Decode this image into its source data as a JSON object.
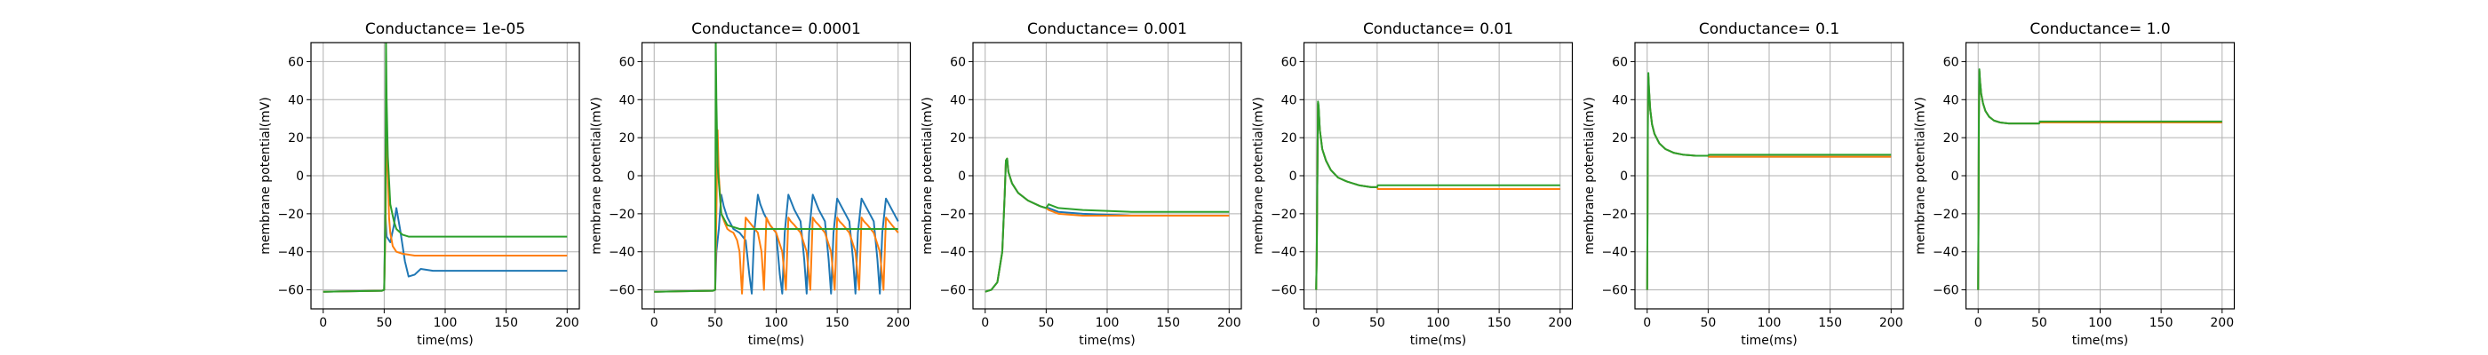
{
  "chart_data": [
    {
      "type": "line",
      "title": "Conductance= 1e-05",
      "xlabel": "time(ms)",
      "ylabel": "membrane potential(mV)",
      "xlim": [
        -10,
        210
      ],
      "ylim": [
        -70,
        70
      ],
      "xticks": [
        0,
        50,
        100,
        150,
        200
      ],
      "yticks": [
        -60,
        -40,
        -20,
        0,
        20,
        40,
        60
      ],
      "grid": true,
      "series": [
        {
          "color": "#1f77b4",
          "x": [
            0,
            48,
            50,
            51,
            52,
            55,
            58,
            60,
            63,
            67,
            70,
            75,
            80,
            90,
            100,
            120,
            150,
            200
          ],
          "y": [
            -61,
            -60.5,
            -60,
            -20,
            -32,
            -35,
            -26,
            -17,
            -28,
            -45,
            -53,
            -52,
            -49,
            -50,
            -50,
            -50,
            -50,
            -50
          ]
        },
        {
          "color": "#ff7f0e",
          "x": [
            0,
            48,
            50,
            51,
            52,
            53,
            54,
            55,
            57,
            60,
            65,
            75,
            100,
            200
          ],
          "y": [
            -61,
            -60.5,
            -60,
            -30,
            24,
            5,
            -22,
            -30,
            -37,
            -40,
            -41,
            -42,
            -42,
            -42
          ]
        },
        {
          "color": "#2ca02c",
          "x": [
            0,
            48,
            50,
            51,
            51.5,
            52,
            53,
            55,
            58,
            60,
            65,
            70,
            80,
            100,
            200
          ],
          "y": [
            -61,
            -60.5,
            -60,
            -20,
            70,
            40,
            10,
            -15,
            -24,
            -28,
            -31,
            -32,
            -32,
            -32,
            -32
          ]
        }
      ]
    },
    {
      "type": "line",
      "title": "Conductance= 0.0001",
      "xlabel": "time(ms)",
      "ylabel": "membrane potential(mV)",
      "xlim": [
        -10,
        210
      ],
      "ylim": [
        -70,
        70
      ],
      "xticks": [
        0,
        50,
        100,
        150,
        200
      ],
      "yticks": [
        -60,
        -40,
        -20,
        0,
        20,
        40,
        60
      ],
      "grid": true,
      "series": [
        {
          "color": "#1f77b4",
          "x": [
            0,
            48,
            50,
            51,
            53,
            55,
            57,
            60,
            65,
            70,
            75,
            78,
            80,
            82,
            85,
            87,
            90,
            95,
            100,
            103,
            105,
            107,
            110,
            115,
            120,
            123,
            125,
            127,
            130,
            135,
            140,
            143,
            145,
            147,
            150,
            155,
            160,
            163,
            165,
            167,
            170,
            175,
            180,
            183,
            185,
            187,
            190,
            195,
            200
          ],
          "y": [
            -61,
            -60.5,
            -60,
            -40,
            -28,
            -10,
            -16,
            -22,
            -28,
            -30,
            -34,
            -52,
            -62,
            -30,
            -10,
            -15,
            -20,
            -26,
            -30,
            -52,
            -62,
            -30,
            -10,
            -18,
            -24,
            -44,
            -62,
            -30,
            -10,
            -18,
            -24,
            -44,
            -62,
            -30,
            -12,
            -18,
            -24,
            -44,
            -62,
            -30,
            -12,
            -18,
            -24,
            -44,
            -62,
            -30,
            -12,
            -18,
            -24
          ]
        },
        {
          "color": "#ff7f0e",
          "x": [
            0,
            48,
            50,
            51,
            52,
            53,
            55,
            58,
            60,
            62,
            65,
            68,
            70,
            72,
            75,
            80,
            85,
            88,
            90,
            92,
            95,
            100,
            105,
            108,
            110,
            112,
            115,
            120,
            125,
            128,
            130,
            132,
            135,
            140,
            145,
            148,
            150,
            152,
            155,
            160,
            165,
            168,
            170,
            172,
            175,
            180,
            185,
            188,
            190,
            195,
            200
          ],
          "y": [
            -61,
            -60.5,
            -60,
            -20,
            24,
            0,
            -20,
            -25,
            -28,
            -29,
            -30,
            -34,
            -40,
            -62,
            -22,
            -26,
            -30,
            -40,
            -60,
            -22,
            -26,
            -30,
            -40,
            -60,
            -22,
            -24,
            -26,
            -30,
            -40,
            -60,
            -22,
            -24,
            -26,
            -30,
            -40,
            -60,
            -22,
            -24,
            -26,
            -30,
            -40,
            -60,
            -22,
            -24,
            -26,
            -30,
            -40,
            -60,
            -22,
            -26,
            -30
          ]
        },
        {
          "color": "#2ca02c",
          "x": [
            0,
            48,
            50,
            50.5,
            51,
            52,
            55,
            60,
            70,
            100,
            200
          ],
          "y": [
            -61,
            -60.5,
            -60,
            70,
            40,
            5,
            -20,
            -26,
            -28,
            -28,
            -28
          ]
        }
      ]
    },
    {
      "type": "line",
      "title": "Conductance= 0.001",
      "xlabel": "time(ms)",
      "ylabel": "membrane potential(mV)",
      "xlim": [
        -10,
        210
      ],
      "ylim": [
        -70,
        70
      ],
      "xticks": [
        0,
        50,
        100,
        150,
        200
      ],
      "yticks": [
        -60,
        -40,
        -20,
        0,
        20,
        40,
        60
      ],
      "grid": true,
      "series": [
        {
          "color": "#1f77b4",
          "x": [
            0,
            5,
            10,
            14,
            16,
            17,
            18,
            19,
            22,
            27,
            35,
            45,
            50,
            52,
            60,
            80,
            120,
            200
          ],
          "y": [
            -61,
            -60,
            -56,
            -40,
            -10,
            8,
            9,
            2,
            -4,
            -9,
            -13,
            -16,
            -17,
            -17,
            -19,
            -20,
            -21,
            -21
          ]
        },
        {
          "color": "#ff7f0e",
          "x": [
            0,
            5,
            10,
            14,
            16,
            17,
            18,
            19,
            22,
            27,
            35,
            45,
            50,
            52,
            60,
            80,
            120,
            200
          ],
          "y": [
            -61,
            -60,
            -56,
            -40,
            -10,
            8,
            9,
            2,
            -4,
            -9,
            -13,
            -16,
            -17,
            -18,
            -20,
            -21,
            -21,
            -21
          ]
        },
        {
          "color": "#2ca02c",
          "x": [
            0,
            5,
            10,
            14,
            16,
            17,
            18,
            19,
            22,
            27,
            35,
            45,
            50,
            52,
            60,
            80,
            120,
            200
          ],
          "y": [
            -61,
            -60,
            -56,
            -40,
            -10,
            8,
            9,
            2,
            -4,
            -9,
            -13,
            -16,
            -17,
            -15,
            -17,
            -18,
            -19,
            -19
          ]
        }
      ]
    },
    {
      "type": "line",
      "title": "Conductance= 0.01",
      "xlabel": "time(ms)",
      "ylabel": "membrane potential(mV)",
      "xlim": [
        -10,
        210
      ],
      "ylim": [
        -70,
        70
      ],
      "xticks": [
        0,
        50,
        100,
        150,
        200
      ],
      "yticks": [
        -60,
        -40,
        -20,
        0,
        20,
        40,
        60
      ],
      "grid": true,
      "series": [
        {
          "color": "#1f77b4",
          "x": [
            0,
            0.5,
            1,
            1.5,
            2,
            3,
            5,
            8,
            12,
            18,
            25,
            35,
            45,
            50,
            50.5,
            100,
            200
          ],
          "y": [
            -60,
            -40,
            0,
            38,
            36,
            24,
            14,
            8,
            3,
            -1,
            -3,
            -5,
            -6,
            -6,
            -7,
            -7,
            -7
          ]
        },
        {
          "color": "#ff7f0e",
          "x": [
            0,
            0.5,
            1,
            1.5,
            2,
            3,
            5,
            8,
            12,
            18,
            25,
            35,
            45,
            50,
            50.5,
            100,
            200
          ],
          "y": [
            -60,
            -40,
            0,
            38,
            36,
            24,
            14,
            8,
            3,
            -1,
            -3,
            -5,
            -6,
            -6,
            -7,
            -7,
            -7
          ]
        },
        {
          "color": "#2ca02c",
          "x": [
            0,
            0.5,
            1,
            1.5,
            2,
            3,
            5,
            8,
            12,
            18,
            25,
            35,
            45,
            50,
            50.5,
            100,
            200
          ],
          "y": [
            -60,
            -40,
            0,
            39,
            37,
            24,
            14,
            8,
            3,
            -1,
            -3,
            -5,
            -6,
            -6,
            -5,
            -5,
            -5
          ]
        }
      ]
    },
    {
      "type": "line",
      "title": "Conductance= 0.1",
      "xlabel": "time(ms)",
      "ylabel": "membrane potential(mV)",
      "xlim": [
        -10,
        210
      ],
      "ylim": [
        -70,
        70
      ],
      "xticks": [
        0,
        50,
        100,
        150,
        200
      ],
      "yticks": [
        -60,
        -40,
        -20,
        0,
        20,
        40,
        60
      ],
      "grid": true,
      "series": [
        {
          "color": "#1f77b4",
          "x": [
            0,
            0.3,
            0.6,
            1,
            1.5,
            2.5,
            4,
            6,
            10,
            15,
            22,
            30,
            40,
            50,
            50.5,
            100,
            200
          ],
          "y": [
            -60,
            -20,
            30,
            52,
            45,
            35,
            27,
            22,
            17,
            14,
            12,
            11,
            10.5,
            10.5,
            10,
            10,
            10
          ]
        },
        {
          "color": "#ff7f0e",
          "x": [
            0,
            0.3,
            0.6,
            1,
            1.5,
            2.5,
            4,
            6,
            10,
            15,
            22,
            30,
            40,
            50,
            50.5,
            100,
            200
          ],
          "y": [
            -60,
            -20,
            30,
            52,
            45,
            35,
            27,
            22,
            17,
            14,
            12,
            11,
            10.5,
            10.5,
            10,
            10,
            10
          ]
        },
        {
          "color": "#2ca02c",
          "x": [
            0,
            0.3,
            0.6,
            1,
            1.5,
            2.5,
            4,
            6,
            10,
            15,
            22,
            30,
            40,
            50,
            50.5,
            100,
            200
          ],
          "y": [
            -60,
            -20,
            30,
            54,
            46,
            35,
            27,
            22,
            17,
            14,
            12,
            11,
            10.5,
            10.5,
            11,
            11,
            11
          ]
        }
      ]
    },
    {
      "type": "line",
      "title": "Conductance= 1.0",
      "xlabel": "time(ms)",
      "ylabel": "membrane potential(mV)",
      "xlim": [
        -10,
        210
      ],
      "ylim": [
        -70,
        70
      ],
      "xticks": [
        0,
        50,
        100,
        150,
        200
      ],
      "yticks": [
        -60,
        -40,
        -20,
        0,
        20,
        40,
        60
      ],
      "grid": true,
      "series": [
        {
          "color": "#1f77b4",
          "x": [
            0,
            0.3,
            0.6,
            1,
            1.5,
            2.5,
            4,
            6,
            9,
            13,
            18,
            25,
            35,
            50,
            50.5,
            100,
            200
          ],
          "y": [
            -60,
            -20,
            30,
            55,
            50,
            43,
            38,
            34,
            31,
            29,
            28,
            27.5,
            27.5,
            27.5,
            28,
            28,
            28
          ]
        },
        {
          "color": "#ff7f0e",
          "x": [
            0,
            0.3,
            0.6,
            1,
            1.5,
            2.5,
            4,
            6,
            9,
            13,
            18,
            25,
            35,
            50,
            50.5,
            100,
            200
          ],
          "y": [
            -60,
            -20,
            30,
            55,
            50,
            43,
            38,
            34,
            31,
            29,
            28,
            27.5,
            27.5,
            27.5,
            28,
            28,
            28
          ]
        },
        {
          "color": "#2ca02c",
          "x": [
            0,
            0.3,
            0.6,
            1,
            1.5,
            2.5,
            4,
            6,
            9,
            13,
            18,
            25,
            35,
            50,
            50.5,
            100,
            200
          ],
          "y": [
            -60,
            -20,
            30,
            56,
            50,
            43,
            38,
            34,
            31,
            29,
            28,
            27.5,
            27.5,
            27.5,
            28.5,
            28.5,
            28.5
          ]
        }
      ]
    }
  ]
}
